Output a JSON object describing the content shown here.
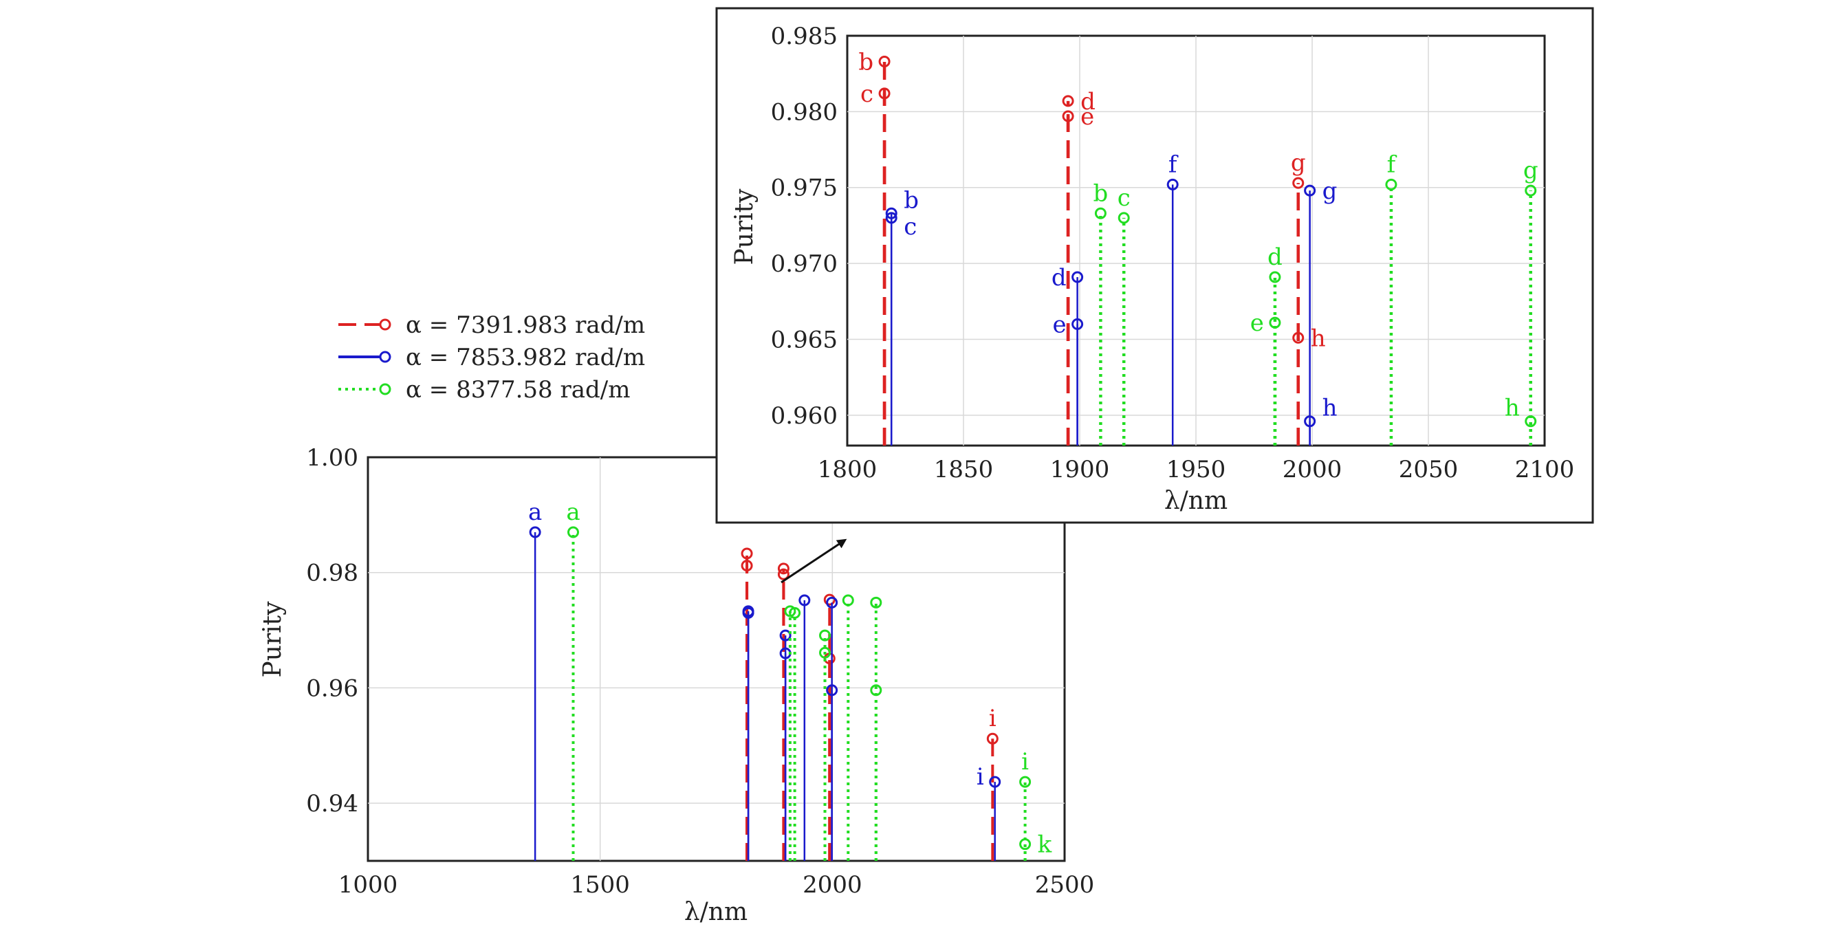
{
  "legend": [
    {
      "label": "α = 7391.983 rad/m",
      "color": "#dd2222",
      "style": "dashed"
    },
    {
      "label": "α = 7853.982 rad/m",
      "color": "#1a1acc",
      "style": "solid"
    },
    {
      "label": "α = 8377.58 rad/m",
      "color": "#22dd22",
      "style": "dotted"
    }
  ],
  "chart_data": [
    {
      "type": "stem",
      "name": "main",
      "xlabel": "λ/nm",
      "ylabel": "Purity",
      "xlim": [
        1000,
        2500
      ],
      "ylim": [
        0.93,
        1.0
      ],
      "xticks": [
        1000,
        1500,
        2000,
        2500
      ],
      "yticks": [
        0.94,
        0.96,
        0.98,
        1.0
      ],
      "ytick_labels": [
        "0.94",
        "0.96",
        "0.98",
        "1.00"
      ],
      "grid": true,
      "series": [
        {
          "name": "α = 7391.983 rad/m",
          "color": "#dd2222",
          "style": "dashed",
          "points": [
            {
              "x": 1816,
              "y": 0.9833,
              "label": ""
            },
            {
              "x": 1816,
              "y": 0.9812,
              "label": ""
            },
            {
              "x": 1895,
              "y": 0.9807,
              "label": ""
            },
            {
              "x": 1895,
              "y": 0.9797,
              "label": ""
            },
            {
              "x": 1994,
              "y": 0.9753,
              "label": ""
            },
            {
              "x": 1994,
              "y": 0.9651,
              "label": ""
            },
            {
              "x": 2345,
              "y": 0.9512,
              "label": "i"
            }
          ]
        },
        {
          "name": "α = 7853.982 rad/m",
          "color": "#1a1acc",
          "style": "solid",
          "points": [
            {
              "x": 1360,
              "y": 0.987,
              "label": "a"
            },
            {
              "x": 1819,
              "y": 0.9733,
              "label": ""
            },
            {
              "x": 1819,
              "y": 0.973,
              "label": ""
            },
            {
              "x": 1899,
              "y": 0.9691,
              "label": ""
            },
            {
              "x": 1899,
              "y": 0.966,
              "label": ""
            },
            {
              "x": 1940,
              "y": 0.9752,
              "label": ""
            },
            {
              "x": 1999,
              "y": 0.9748,
              "label": ""
            },
            {
              "x": 1999,
              "y": 0.9596,
              "label": ""
            },
            {
              "x": 2350,
              "y": 0.9437,
              "label": "i"
            }
          ]
        },
        {
          "name": "α = 8377.58 rad/m",
          "color": "#22dd22",
          "style": "dotted",
          "points": [
            {
              "x": 1442,
              "y": 0.987,
              "label": "a"
            },
            {
              "x": 1909,
              "y": 0.9733,
              "label": ""
            },
            {
              "x": 1919,
              "y": 0.973,
              "label": ""
            },
            {
              "x": 1984,
              "y": 0.9691,
              "label": ""
            },
            {
              "x": 1984,
              "y": 0.9661,
              "label": ""
            },
            {
              "x": 2034,
              "y": 0.9752,
              "label": ""
            },
            {
              "x": 2094,
              "y": 0.9748,
              "label": ""
            },
            {
              "x": 2094,
              "y": 0.9596,
              "label": ""
            },
            {
              "x": 2415,
              "y": 0.9437,
              "label": "i"
            },
            {
              "x": 2415,
              "y": 0.9329,
              "label": "k"
            }
          ]
        }
      ]
    },
    {
      "type": "stem",
      "name": "inset",
      "xlabel": "λ/nm",
      "ylabel": "Purity",
      "xlim": [
        1800,
        2100
      ],
      "ylim": [
        0.958,
        0.985
      ],
      "xticks": [
        1800,
        1850,
        1900,
        1950,
        2000,
        2050,
        2100
      ],
      "yticks": [
        0.96,
        0.965,
        0.97,
        0.975,
        0.98,
        0.985
      ],
      "ytick_labels": [
        "0.960",
        "0.965",
        "0.970",
        "0.975",
        "0.980",
        "0.985"
      ],
      "grid": true,
      "series": [
        {
          "name": "α = 7391.983 rad/m",
          "color": "#dd2222",
          "style": "dashed",
          "points": [
            {
              "x": 1816,
              "y": 0.9833,
              "label": "b",
              "side": "left"
            },
            {
              "x": 1816,
              "y": 0.9812,
              "label": "c",
              "side": "left"
            },
            {
              "x": 1895,
              "y": 0.9807,
              "label": "d",
              "side": "right"
            },
            {
              "x": 1895,
              "y": 0.9797,
              "label": "e",
              "side": "right"
            },
            {
              "x": 1994,
              "y": 0.9753,
              "label": "g",
              "side": "top"
            },
            {
              "x": 1994,
              "y": 0.9651,
              "label": "h",
              "side": "right"
            }
          ]
        },
        {
          "name": "α = 7853.982 rad/m",
          "color": "#1a1acc",
          "style": "solid",
          "points": [
            {
              "x": 1819,
              "y": 0.9733,
              "label": "b",
              "side": "right-up"
            },
            {
              "x": 1819,
              "y": 0.973,
              "label": "c",
              "side": "right-down"
            },
            {
              "x": 1899,
              "y": 0.9691,
              "label": "d",
              "side": "left"
            },
            {
              "x": 1899,
              "y": 0.966,
              "label": "e",
              "side": "left"
            },
            {
              "x": 1940,
              "y": 0.9752,
              "label": "f",
              "side": "top"
            },
            {
              "x": 1999,
              "y": 0.9748,
              "label": "g",
              "side": "right"
            },
            {
              "x": 1999,
              "y": 0.9596,
              "label": "h",
              "side": "right-up"
            }
          ]
        },
        {
          "name": "α = 8377.58 rad/m",
          "color": "#22dd22",
          "style": "dotted",
          "points": [
            {
              "x": 1909,
              "y": 0.9733,
              "label": "b",
              "side": "top"
            },
            {
              "x": 1919,
              "y": 0.973,
              "label": "c",
              "side": "top"
            },
            {
              "x": 1984,
              "y": 0.9691,
              "label": "d",
              "side": "top"
            },
            {
              "x": 1984,
              "y": 0.9661,
              "label": "e",
              "side": "left"
            },
            {
              "x": 2034,
              "y": 0.9752,
              "label": "f",
              "side": "top"
            },
            {
              "x": 2094,
              "y": 0.9748,
              "label": "g",
              "side": "top"
            },
            {
              "x": 2094,
              "y": 0.9596,
              "label": "h",
              "side": "left-up"
            }
          ]
        }
      ]
    }
  ]
}
